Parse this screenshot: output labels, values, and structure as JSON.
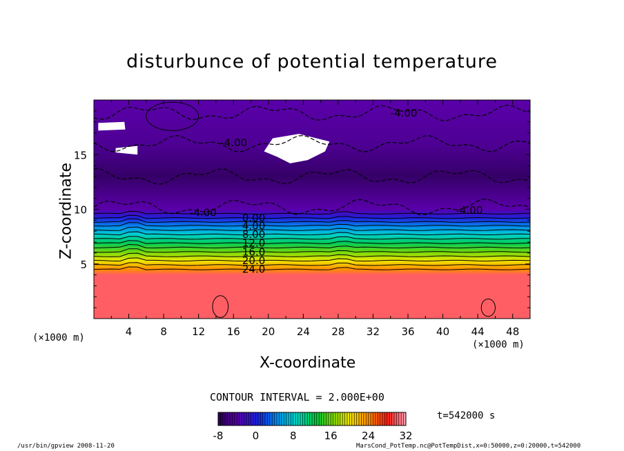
{
  "chart_data": {
    "type": "heatmap",
    "title": "disturbunce of potential temperature",
    "xlabel": "X-coordinate",
    "ylabel": "Z-coordinate",
    "x_unit": "(×1000 m)",
    "y_unit": "(×1000 m)",
    "xlim": [
      0,
      50
    ],
    "ylim": [
      0,
      20
    ],
    "x_ticks": [
      "4",
      "8",
      "12",
      "16",
      "20",
      "24",
      "28",
      "32",
      "36",
      "40",
      "44",
      "48"
    ],
    "y_ticks": [
      "5",
      "10",
      "15"
    ],
    "contour_interval": "CONTOUR INTERVAL = 2.000E+00",
    "contour_labels": [
      {
        "text": "-4.00",
        "x": 34,
        "z": 18.8
      },
      {
        "text": "-4.00",
        "x": 14.5,
        "z": 16.1
      },
      {
        "text": "-4.00",
        "x": 11,
        "z": 9.7
      },
      {
        "text": "-4.00",
        "x": 41.5,
        "z": 9.9
      },
      {
        "text": "0.00",
        "x": 17,
        "z": 9.2
      },
      {
        "text": "4.00",
        "x": 17,
        "z": 8.5
      },
      {
        "text": "8.00",
        "x": 17,
        "z": 7.7
      },
      {
        "text": "12.0",
        "x": 17,
        "z": 6.9
      },
      {
        "text": "16.0",
        "x": 17,
        "z": 6.1
      },
      {
        "text": "20.0",
        "x": 17,
        "z": 5.3
      },
      {
        "text": "24.0",
        "x": 17,
        "z": 4.5
      }
    ],
    "profile": {
      "description_levels_z": [
        0,
        4,
        4.5,
        5.3,
        6.1,
        6.9,
        7.7,
        8.5,
        9.2,
        10,
        13,
        16,
        20
      ],
      "values": [
        30,
        30,
        24,
        20,
        16,
        12,
        8,
        4,
        0,
        -4,
        -7,
        -5,
        -4
      ]
    },
    "colorbar": {
      "min": -8,
      "max": 32,
      "tick_labels": [
        "-8",
        "0",
        "8",
        "16",
        "24",
        "32"
      ],
      "tick_values": [
        -8,
        0,
        8,
        16,
        24,
        32
      ]
    },
    "time": "t=542000 s"
  },
  "footer": {
    "left": "/usr/bin/gpview   2008-11-20",
    "right": "MarsCond_PotTemp.nc@PotTempDist,x=0:50000,z=0:20000,t=542000"
  }
}
